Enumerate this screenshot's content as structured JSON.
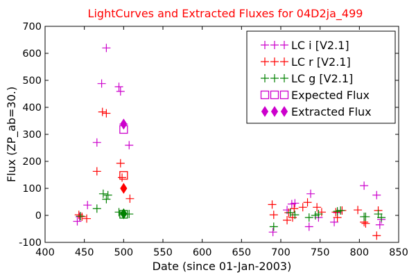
{
  "chart_data": {
    "type": "scatter",
    "title": "LightCurves and Extracted Fluxes for 04D2ja_499",
    "xlabel": "Date (since 01-Jan-2003)",
    "ylabel": "Flux (ZP_ab=30.)",
    "xlim": [
      400,
      850
    ],
    "ylim": [
      -100,
      700
    ],
    "xticks": [
      "400",
      "450",
      "500",
      "550",
      "600",
      "650",
      "700",
      "750",
      "800",
      "850"
    ],
    "yticks": [
      "-100",
      "0",
      "100",
      "200",
      "300",
      "400",
      "500",
      "600",
      "700"
    ],
    "grid": false,
    "legend_position": "top-right",
    "colors": {
      "i": "#cc00cc",
      "r": "#ff0000",
      "g": "#008000",
      "title": "#ff0000"
    },
    "series": [
      {
        "name": "LC i [V2.1]",
        "marker": "plus",
        "color": "#cc00cc",
        "points": [
          [
            441,
            -22
          ],
          [
            444,
            -5
          ],
          [
            454,
            38
          ],
          [
            466,
            270
          ],
          [
            472,
            488
          ],
          [
            478,
            620
          ],
          [
            494,
            476
          ],
          [
            496,
            459
          ],
          [
            500,
            338
          ],
          [
            507,
            260
          ],
          [
            690,
            -62
          ],
          [
            708,
            20
          ],
          [
            714,
            42
          ],
          [
            718,
            45
          ],
          [
            736,
            -42
          ],
          [
            738,
            80
          ],
          [
            748,
            -8
          ],
          [
            768,
            -25
          ],
          [
            772,
            10
          ],
          [
            806,
            110
          ],
          [
            822,
            75
          ],
          [
            826,
            -35
          ],
          [
            828,
            -15
          ]
        ]
      },
      {
        "name": "LC r [V2.1]",
        "marker": "plus",
        "color": "#ff0000",
        "points": [
          [
            443,
            2
          ],
          [
            447,
            -5
          ],
          [
            453,
            -12
          ],
          [
            466,
            163
          ],
          [
            473,
            383
          ],
          [
            478,
            378
          ],
          [
            496,
            193
          ],
          [
            498,
            140
          ],
          [
            508,
            62
          ],
          [
            689,
            40
          ],
          [
            691,
            2
          ],
          [
            708,
            -18
          ],
          [
            710,
            10
          ],
          [
            715,
            -8
          ],
          [
            717,
            25
          ],
          [
            728,
            30
          ],
          [
            734,
            48
          ],
          [
            746,
            30
          ],
          [
            752,
            12
          ],
          [
            770,
            12
          ],
          [
            772,
            -8
          ],
          [
            778,
            18
          ],
          [
            798,
            20
          ],
          [
            806,
            -25
          ],
          [
            808,
            -30
          ],
          [
            822,
            -75
          ],
          [
            824,
            18
          ]
        ]
      },
      {
        "name": "LC g [V2.1]",
        "marker": "plus",
        "color": "#008000",
        "points": [
          [
            445,
            -3
          ],
          [
            466,
            25
          ],
          [
            474,
            80
          ],
          [
            478,
            60
          ],
          [
            480,
            75
          ],
          [
            494,
            12
          ],
          [
            499,
            5
          ],
          [
            507,
            5
          ],
          [
            691,
            -42
          ],
          [
            712,
            10
          ],
          [
            718,
            2
          ],
          [
            736,
            -8
          ],
          [
            744,
            0
          ],
          [
            748,
            5
          ],
          [
            772,
            15
          ],
          [
            776,
            18
          ],
          [
            806,
            -5
          ],
          [
            808,
            -5
          ],
          [
            824,
            5
          ],
          [
            828,
            -8
          ]
        ]
      },
      {
        "name": "Expected Flux",
        "marker": "open-square",
        "color": "#cc00cc",
        "points": [
          [
            500,
            318
          ],
          [
            500,
            148
          ],
          [
            500,
            4
          ]
        ],
        "point_colors": [
          "#cc00cc",
          "#ff0000",
          "#008000"
        ]
      },
      {
        "name": "Extracted Flux",
        "marker": "diamond",
        "color": "#cc00cc",
        "points": [
          [
            500,
            338
          ],
          [
            500,
            100
          ],
          [
            500,
            6
          ]
        ],
        "point_colors": [
          "#cc00cc",
          "#ff0000",
          "#008000"
        ]
      }
    ]
  }
}
